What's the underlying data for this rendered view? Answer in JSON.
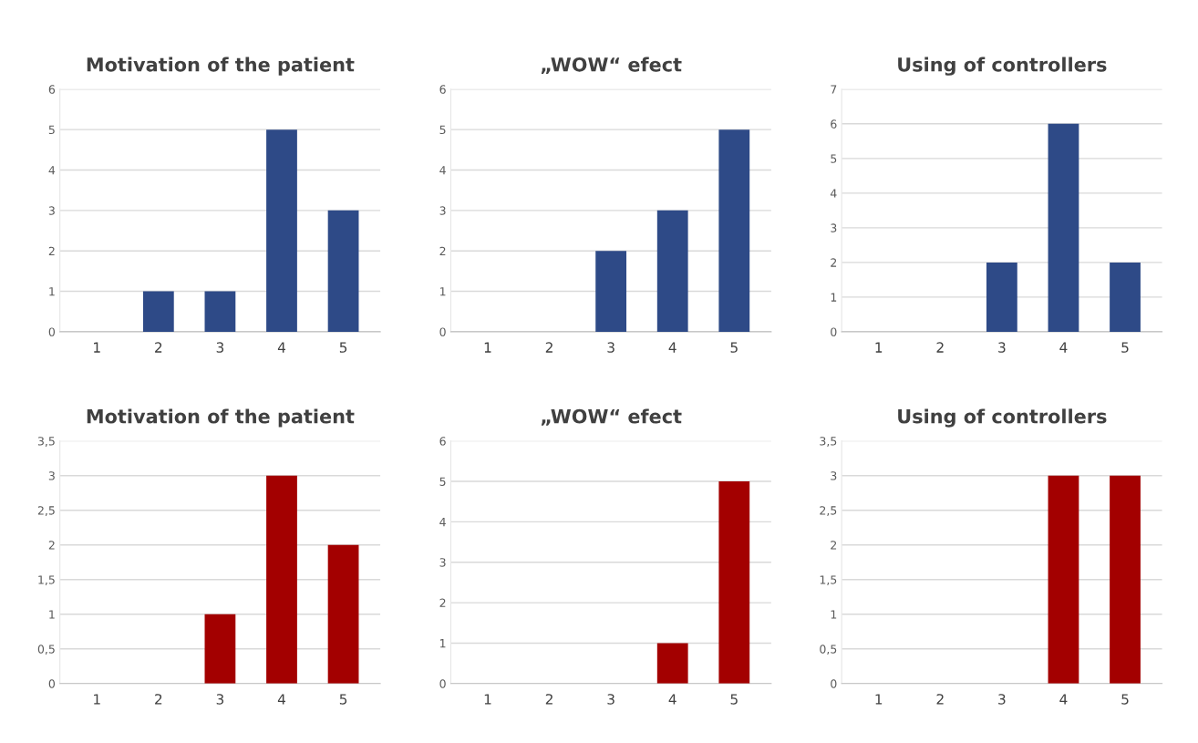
{
  "chart_data": [
    {
      "type": "bar",
      "title": "Motivation of the patient",
      "categories": [
        "1",
        "2",
        "3",
        "4",
        "5"
      ],
      "values": [
        0,
        1,
        1,
        5,
        3
      ],
      "color": "#2e4a87",
      "ylim": [
        0,
        6
      ],
      "yticks": [
        0,
        1,
        2,
        3,
        4,
        5,
        6
      ],
      "grid": "y"
    },
    {
      "type": "bar",
      "title": "„WOW“ efect",
      "categories": [
        "1",
        "2",
        "3",
        "4",
        "5"
      ],
      "values": [
        0,
        0,
        2,
        3,
        5
      ],
      "color": "#2e4a87",
      "ylim": [
        0,
        6
      ],
      "yticks": [
        0,
        1,
        2,
        3,
        4,
        5,
        6
      ],
      "grid": "y"
    },
    {
      "type": "bar",
      "title": "Using of controllers",
      "categories": [
        "1",
        "2",
        "3",
        "4",
        "5"
      ],
      "values": [
        0,
        0,
        2,
        6,
        2
      ],
      "color": "#2e4a87",
      "ylim": [
        0,
        7
      ],
      "yticks": [
        0,
        1,
        2,
        3,
        4,
        5,
        6,
        7
      ],
      "grid": "y"
    },
    {
      "type": "bar",
      "title": "Motivation of the patient",
      "categories": [
        "1",
        "2",
        "3",
        "4",
        "5"
      ],
      "values": [
        0,
        0,
        1,
        3,
        2
      ],
      "color": "#a30000",
      "ylim": [
        0,
        3.5
      ],
      "yticks": [
        0,
        {
          "value": 0.5,
          "label": "0,5"
        },
        1,
        {
          "value": 1.5,
          "label": "1,5"
        },
        2,
        {
          "value": 2.5,
          "label": "2,5"
        },
        3,
        {
          "value": 3.5,
          "label": "3,5"
        }
      ],
      "grid": "y"
    },
    {
      "type": "bar",
      "title": "„WOW“ efect",
      "categories": [
        "1",
        "2",
        "3",
        "4",
        "5"
      ],
      "values": [
        0,
        0,
        0,
        1,
        5
      ],
      "color": "#a30000",
      "ylim": [
        0,
        6
      ],
      "yticks": [
        0,
        1,
        2,
        3,
        4,
        5,
        6
      ],
      "grid": "y"
    },
    {
      "type": "bar",
      "title": "Using of controllers",
      "categories": [
        "1",
        "2",
        "3",
        "4",
        "5"
      ],
      "values": [
        0,
        0,
        0,
        3,
        3
      ],
      "color": "#a30000",
      "ylim": [
        0,
        3.5
      ],
      "yticks": [
        0,
        {
          "value": 0.5,
          "label": "0,5"
        },
        1,
        {
          "value": 1.5,
          "label": "1,5"
        },
        2,
        {
          "value": 2.5,
          "label": "2,5"
        },
        3,
        {
          "value": 3.5,
          "label": "3,5"
        }
      ],
      "grid": "y"
    }
  ]
}
